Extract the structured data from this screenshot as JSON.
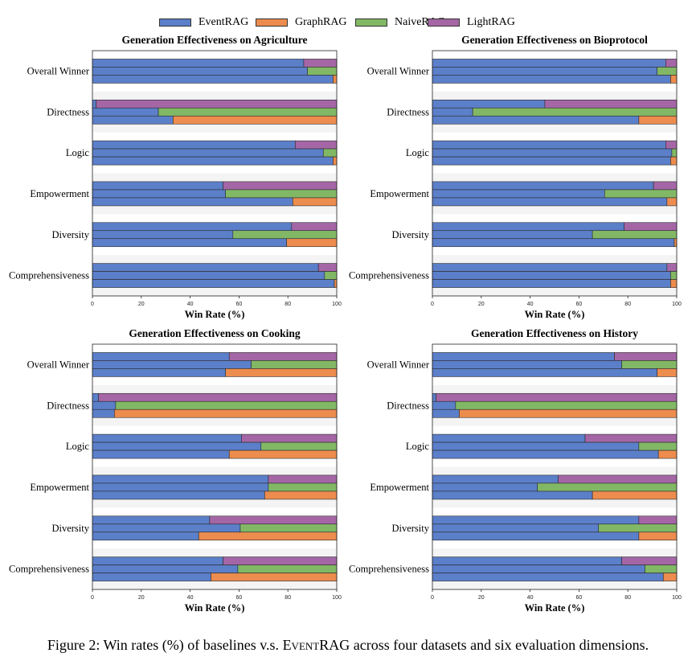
{
  "legend": [
    {
      "name": "EventRAG",
      "color": "#5b7fc9"
    },
    {
      "name": "GraphRAG",
      "color": "#ec8c4e"
    },
    {
      "name": "NaiveRAG",
      "color": "#82b865"
    },
    {
      "name": "LightRAG",
      "color": "#a566a6"
    }
  ],
  "caption": {
    "prefix": "Figure 2: Win rates (%) of baselines v.s. ",
    "method": "EventRAG",
    "suffix": " across four datasets and six evaluation dimensions."
  },
  "chart_data": [
    {
      "type": "bar",
      "orientation": "horizontal",
      "stacked": true,
      "title": "Generation Effectiveness on Agriculture",
      "xlabel": "Win Rate (%)",
      "xlim": [
        0,
        100
      ],
      "xticks": [
        "0",
        "20",
        "40",
        "60",
        "80",
        "100"
      ],
      "grid": false,
      "categories": [
        "Overall Winner",
        "Directness",
        "Logic",
        "Empowerment",
        "Diversity",
        "Comprehensiveness"
      ],
      "comparisons": [
        {
          "baseline": "LightRAG",
          "eventrag": [
            86.5,
            1.5,
            83,
            53.5,
            81.5,
            92.5
          ]
        },
        {
          "baseline": "NaiveRAG",
          "eventrag": [
            88,
            27,
            94.5,
            54.5,
            57.5,
            95
          ]
        },
        {
          "baseline": "GraphRAG",
          "eventrag": [
            98.5,
            33,
            98.5,
            82,
            79.5,
            99
          ]
        }
      ]
    },
    {
      "type": "bar",
      "orientation": "horizontal",
      "stacked": true,
      "title": "Generation Effectiveness on Bioprotocol",
      "xlabel": "Win Rate (%)",
      "xlim": [
        0,
        100
      ],
      "xticks": [
        "0",
        "20",
        "40",
        "60",
        "80",
        "100"
      ],
      "grid": false,
      "categories": [
        "Overall Winner",
        "Directness",
        "Logic",
        "Empowerment",
        "Diversity",
        "Comprehensiveness"
      ],
      "comparisons": [
        {
          "baseline": "LightRAG",
          "eventrag": [
            95.5,
            46,
            95.5,
            90.5,
            78.5,
            96
          ]
        },
        {
          "baseline": "NaiveRAG",
          "eventrag": [
            92,
            16.5,
            98,
            70.5,
            65.5,
            97.5
          ]
        },
        {
          "baseline": "GraphRAG",
          "eventrag": [
            97.5,
            84.5,
            97.5,
            96,
            99,
            97.5
          ]
        }
      ]
    },
    {
      "type": "bar",
      "orientation": "horizontal",
      "stacked": true,
      "title": "Generation Effectiveness on Cooking",
      "xlabel": "Win Rate (%)",
      "xlim": [
        0,
        100
      ],
      "xticks": [
        "0",
        "20",
        "40",
        "60",
        "80",
        "100"
      ],
      "grid": false,
      "categories": [
        "Overall Winner",
        "Directness",
        "Logic",
        "Empowerment",
        "Diversity",
        "Comprehensiveness"
      ],
      "comparisons": [
        {
          "baseline": "LightRAG",
          "eventrag": [
            56,
            2.5,
            61,
            72,
            48,
            53.5
          ]
        },
        {
          "baseline": "NaiveRAG",
          "eventrag": [
            65,
            9.5,
            69,
            72,
            60.5,
            59.5
          ]
        },
        {
          "baseline": "GraphRAG",
          "eventrag": [
            54.5,
            9,
            56,
            70.5,
            43.5,
            48.5
          ]
        }
      ]
    },
    {
      "type": "bar",
      "orientation": "horizontal",
      "stacked": true,
      "title": "Generation Effectiveness on History",
      "xlabel": "Win Rate (%)",
      "xlim": [
        0,
        100
      ],
      "xticks": [
        "0",
        "20",
        "40",
        "60",
        "80",
        "100"
      ],
      "grid": false,
      "categories": [
        "Overall Winner",
        "Directness",
        "Logic",
        "Empowerment",
        "Diversity",
        "Comprehensiveness"
      ],
      "comparisons": [
        {
          "baseline": "LightRAG",
          "eventrag": [
            74.5,
            1.5,
            62.5,
            51.5,
            84.5,
            77.5
          ]
        },
        {
          "baseline": "NaiveRAG",
          "eventrag": [
            77.5,
            9.5,
            84.5,
            43,
            68,
            87
          ]
        },
        {
          "baseline": "GraphRAG",
          "eventrag": [
            92,
            11,
            92.5,
            65.5,
            84.5,
            94.5
          ]
        }
      ]
    }
  ]
}
